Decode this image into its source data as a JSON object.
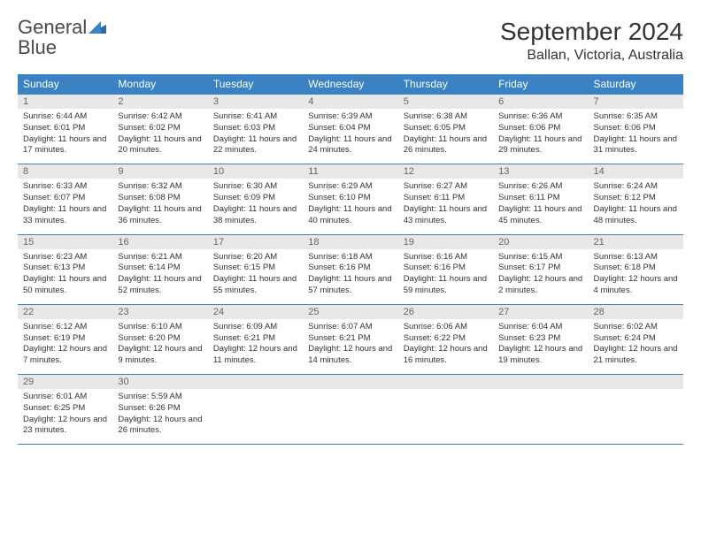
{
  "logo": {
    "text_gray": "General",
    "text_blue": "Blue"
  },
  "header": {
    "month_title": "September 2024",
    "location": "Ballan, Victoria, Australia"
  },
  "colors": {
    "header_bg": "#3b82c4",
    "header_text": "#ffffff",
    "daynum_bg": "#e8e8e8",
    "daynum_text": "#666666",
    "body_text": "#333333",
    "rule": "#3b82c4"
  },
  "day_headers": [
    "Sunday",
    "Monday",
    "Tuesday",
    "Wednesday",
    "Thursday",
    "Friday",
    "Saturday"
  ],
  "weeks": [
    [
      {
        "num": "1",
        "sunrise": "Sunrise: 6:44 AM",
        "sunset": "Sunset: 6:01 PM",
        "daylight": "Daylight: 11 hours and 17 minutes."
      },
      {
        "num": "2",
        "sunrise": "Sunrise: 6:42 AM",
        "sunset": "Sunset: 6:02 PM",
        "daylight": "Daylight: 11 hours and 20 minutes."
      },
      {
        "num": "3",
        "sunrise": "Sunrise: 6:41 AM",
        "sunset": "Sunset: 6:03 PM",
        "daylight": "Daylight: 11 hours and 22 minutes."
      },
      {
        "num": "4",
        "sunrise": "Sunrise: 6:39 AM",
        "sunset": "Sunset: 6:04 PM",
        "daylight": "Daylight: 11 hours and 24 minutes."
      },
      {
        "num": "5",
        "sunrise": "Sunrise: 6:38 AM",
        "sunset": "Sunset: 6:05 PM",
        "daylight": "Daylight: 11 hours and 26 minutes."
      },
      {
        "num": "6",
        "sunrise": "Sunrise: 6:36 AM",
        "sunset": "Sunset: 6:06 PM",
        "daylight": "Daylight: 11 hours and 29 minutes."
      },
      {
        "num": "7",
        "sunrise": "Sunrise: 6:35 AM",
        "sunset": "Sunset: 6:06 PM",
        "daylight": "Daylight: 11 hours and 31 minutes."
      }
    ],
    [
      {
        "num": "8",
        "sunrise": "Sunrise: 6:33 AM",
        "sunset": "Sunset: 6:07 PM",
        "daylight": "Daylight: 11 hours and 33 minutes."
      },
      {
        "num": "9",
        "sunrise": "Sunrise: 6:32 AM",
        "sunset": "Sunset: 6:08 PM",
        "daylight": "Daylight: 11 hours and 36 minutes."
      },
      {
        "num": "10",
        "sunrise": "Sunrise: 6:30 AM",
        "sunset": "Sunset: 6:09 PM",
        "daylight": "Daylight: 11 hours and 38 minutes."
      },
      {
        "num": "11",
        "sunrise": "Sunrise: 6:29 AM",
        "sunset": "Sunset: 6:10 PM",
        "daylight": "Daylight: 11 hours and 40 minutes."
      },
      {
        "num": "12",
        "sunrise": "Sunrise: 6:27 AM",
        "sunset": "Sunset: 6:11 PM",
        "daylight": "Daylight: 11 hours and 43 minutes."
      },
      {
        "num": "13",
        "sunrise": "Sunrise: 6:26 AM",
        "sunset": "Sunset: 6:11 PM",
        "daylight": "Daylight: 11 hours and 45 minutes."
      },
      {
        "num": "14",
        "sunrise": "Sunrise: 6:24 AM",
        "sunset": "Sunset: 6:12 PM",
        "daylight": "Daylight: 11 hours and 48 minutes."
      }
    ],
    [
      {
        "num": "15",
        "sunrise": "Sunrise: 6:23 AM",
        "sunset": "Sunset: 6:13 PM",
        "daylight": "Daylight: 11 hours and 50 minutes."
      },
      {
        "num": "16",
        "sunrise": "Sunrise: 6:21 AM",
        "sunset": "Sunset: 6:14 PM",
        "daylight": "Daylight: 11 hours and 52 minutes."
      },
      {
        "num": "17",
        "sunrise": "Sunrise: 6:20 AM",
        "sunset": "Sunset: 6:15 PM",
        "daylight": "Daylight: 11 hours and 55 minutes."
      },
      {
        "num": "18",
        "sunrise": "Sunrise: 6:18 AM",
        "sunset": "Sunset: 6:16 PM",
        "daylight": "Daylight: 11 hours and 57 minutes."
      },
      {
        "num": "19",
        "sunrise": "Sunrise: 6:16 AM",
        "sunset": "Sunset: 6:16 PM",
        "daylight": "Daylight: 11 hours and 59 minutes."
      },
      {
        "num": "20",
        "sunrise": "Sunrise: 6:15 AM",
        "sunset": "Sunset: 6:17 PM",
        "daylight": "Daylight: 12 hours and 2 minutes."
      },
      {
        "num": "21",
        "sunrise": "Sunrise: 6:13 AM",
        "sunset": "Sunset: 6:18 PM",
        "daylight": "Daylight: 12 hours and 4 minutes."
      }
    ],
    [
      {
        "num": "22",
        "sunrise": "Sunrise: 6:12 AM",
        "sunset": "Sunset: 6:19 PM",
        "daylight": "Daylight: 12 hours and 7 minutes."
      },
      {
        "num": "23",
        "sunrise": "Sunrise: 6:10 AM",
        "sunset": "Sunset: 6:20 PM",
        "daylight": "Daylight: 12 hours and 9 minutes."
      },
      {
        "num": "24",
        "sunrise": "Sunrise: 6:09 AM",
        "sunset": "Sunset: 6:21 PM",
        "daylight": "Daylight: 12 hours and 11 minutes."
      },
      {
        "num": "25",
        "sunrise": "Sunrise: 6:07 AM",
        "sunset": "Sunset: 6:21 PM",
        "daylight": "Daylight: 12 hours and 14 minutes."
      },
      {
        "num": "26",
        "sunrise": "Sunrise: 6:06 AM",
        "sunset": "Sunset: 6:22 PM",
        "daylight": "Daylight: 12 hours and 16 minutes."
      },
      {
        "num": "27",
        "sunrise": "Sunrise: 6:04 AM",
        "sunset": "Sunset: 6:23 PM",
        "daylight": "Daylight: 12 hours and 19 minutes."
      },
      {
        "num": "28",
        "sunrise": "Sunrise: 6:02 AM",
        "sunset": "Sunset: 6:24 PM",
        "daylight": "Daylight: 12 hours and 21 minutes."
      }
    ],
    [
      {
        "num": "29",
        "sunrise": "Sunrise: 6:01 AM",
        "sunset": "Sunset: 6:25 PM",
        "daylight": "Daylight: 12 hours and 23 minutes."
      },
      {
        "num": "30",
        "sunrise": "Sunrise: 5:59 AM",
        "sunset": "Sunset: 6:26 PM",
        "daylight": "Daylight: 12 hours and 26 minutes."
      },
      null,
      null,
      null,
      null,
      null
    ]
  ]
}
